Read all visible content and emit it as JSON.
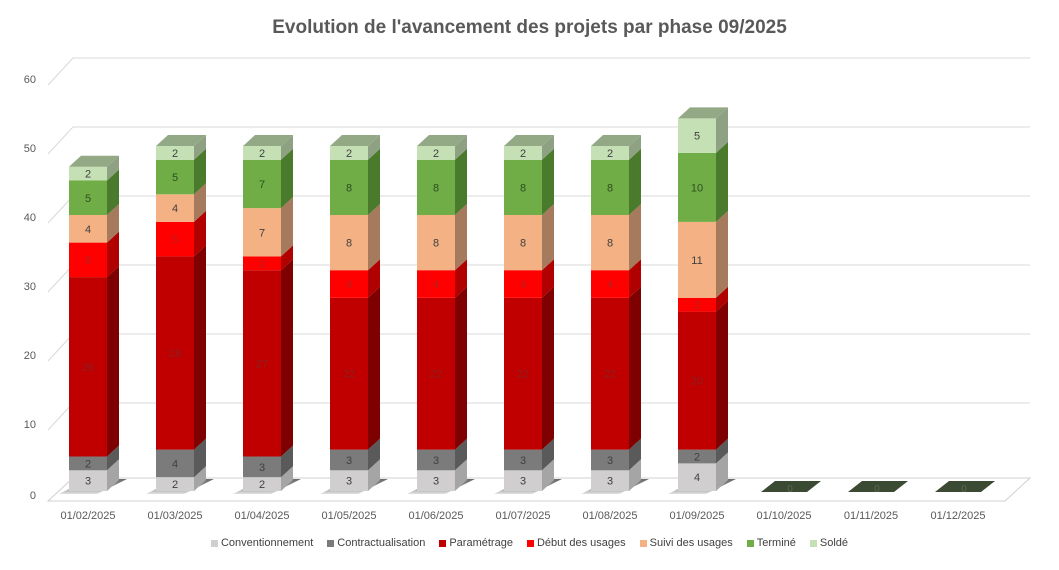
{
  "chart_data": {
    "type": "bar",
    "stacked": true,
    "style": "3d-column",
    "title": "Evolution de l'avancement des projets par phase 09/2025",
    "xlabel": "",
    "ylabel": "",
    "ylim": [
      0,
      60
    ],
    "yticks": [
      0,
      10,
      20,
      30,
      40,
      50,
      60
    ],
    "grid": true,
    "legend_position": "bottom",
    "categories": [
      "01/02/2025",
      "01/03/2025",
      "01/04/2025",
      "01/05/2025",
      "01/06/2025",
      "01/07/2025",
      "01/08/2025",
      "01/09/2025",
      "01/10/2025",
      "01/11/2025",
      "01/12/2025"
    ],
    "series": [
      {
        "name": "Conventionnement",
        "color": "#d0cece",
        "side": "#a6a5a5",
        "top": "#e0dfdf",
        "label_color": "#404040",
        "values": [
          3,
          2,
          2,
          3,
          3,
          3,
          3,
          4,
          0,
          0,
          0
        ]
      },
      {
        "name": "Contractualisation",
        "color": "#7b7b7b",
        "side": "#5a5a5a",
        "top": "#8f8f8f",
        "label_color": "#404040",
        "values": [
          2,
          4,
          3,
          3,
          3,
          3,
          3,
          2,
          0,
          0,
          0
        ]
      },
      {
        "name": "Paramétrage",
        "color": "#c00000",
        "side": "#7f0000",
        "top": "#d02020",
        "label_color": "#8b2020",
        "values": [
          26,
          28,
          27,
          22,
          22,
          22,
          22,
          20,
          0,
          0,
          0
        ]
      },
      {
        "name": "Début des usages",
        "color": "#ff0000",
        "side": "#b00000",
        "top": "#ff3030",
        "label_color": "#b02020",
        "values": [
          5,
          5,
          2,
          4,
          4,
          4,
          4,
          2,
          0,
          0,
          0
        ]
      },
      {
        "name": "Suivi des usages",
        "color": "#f4b183",
        "side": "#a67a5c",
        "top": "#f7c29f",
        "label_color": "#404040",
        "values": [
          4,
          4,
          7,
          8,
          8,
          8,
          8,
          11,
          0,
          0,
          0
        ]
      },
      {
        "name": "Terminé",
        "color": "#70ad47",
        "side": "#4a7a2c",
        "top": "#86bd60",
        "label_color": "#2f4f1f",
        "values": [
          5,
          5,
          7,
          8,
          8,
          8,
          8,
          10,
          0,
          0,
          0
        ]
      },
      {
        "name": "Soldé",
        "color": "#c5e0b4",
        "side": "#8fa183",
        "top": "#93a986",
        "label_color": "#404040",
        "values": [
          2,
          2,
          2,
          2,
          2,
          2,
          2,
          5,
          0,
          0,
          0
        ]
      }
    ],
    "zero_labels": [
      "0",
      "0",
      "0"
    ]
  }
}
